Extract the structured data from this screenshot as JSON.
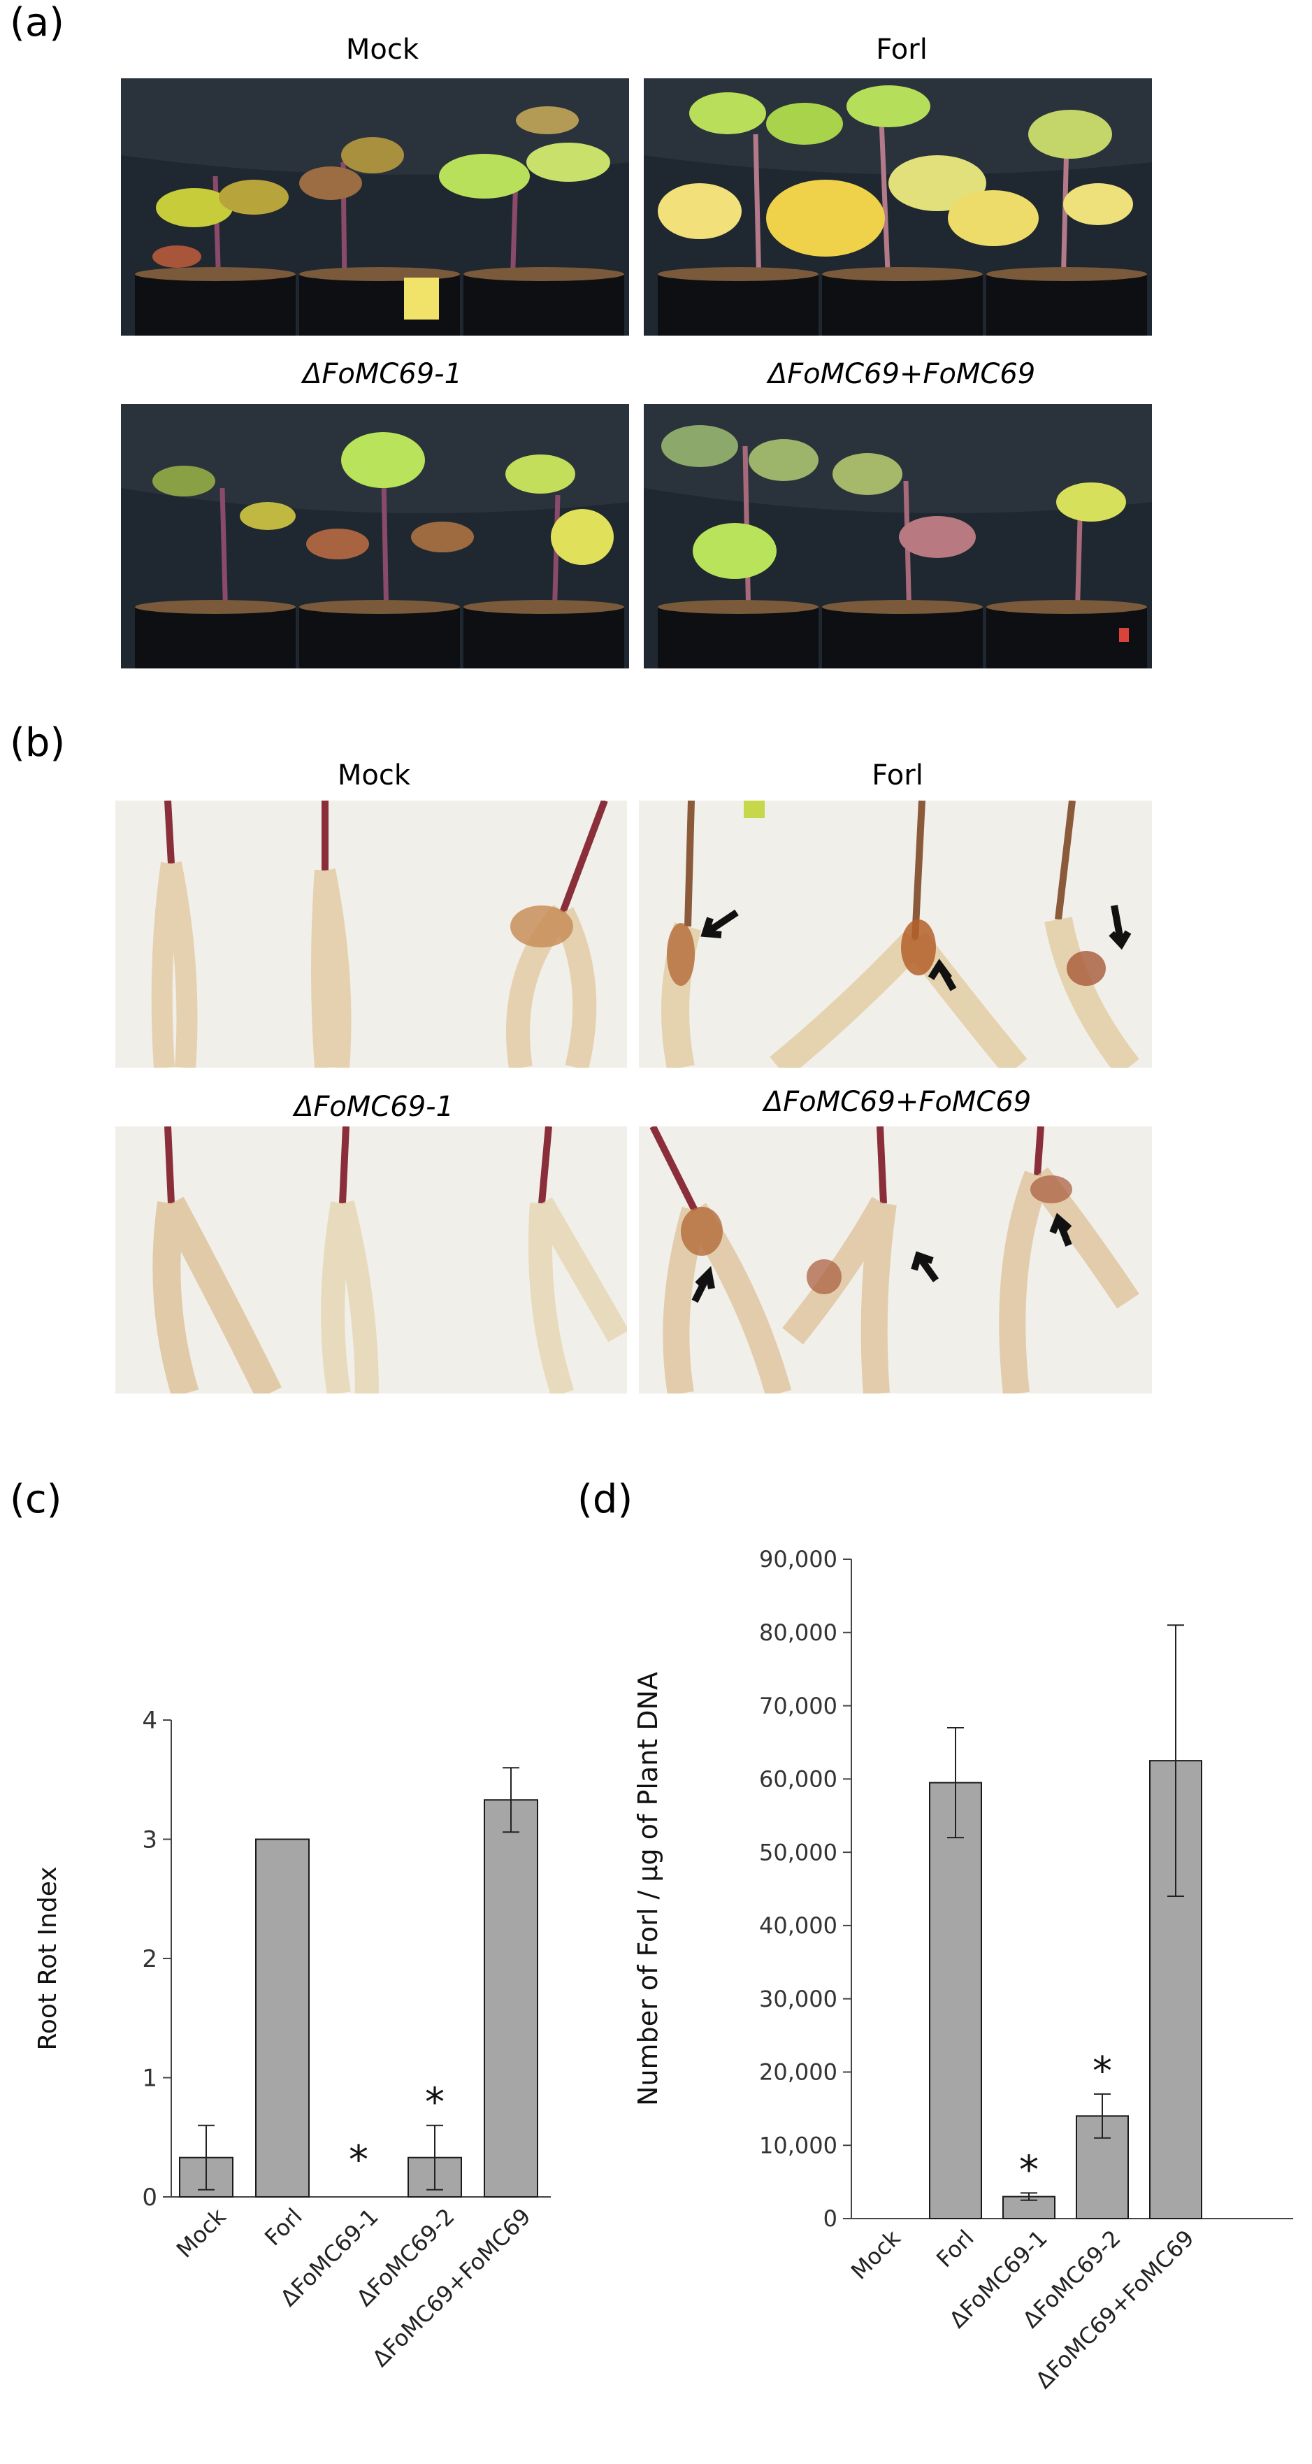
{
  "panels": {
    "a": {
      "letter": "(a)",
      "labels": [
        "Mock",
        "Forl",
        "ΔFoMC69-1",
        "ΔFoMC69+FoMC69"
      ]
    },
    "b": {
      "letter": "(b)",
      "labels": [
        "Mock",
        "Forl",
        "ΔFoMC69-1",
        "ΔFoMC69+FoMC69"
      ]
    },
    "c": {
      "letter": "(c)"
    },
    "d": {
      "letter": "(d)"
    }
  },
  "colors": {
    "bar_fill": "#a6a6a6",
    "bar_stroke": "#1a1a1a",
    "plant_bg": "#1f2730",
    "root_bg": "#f1efea"
  },
  "chart_data": [
    {
      "id": "c",
      "type": "bar",
      "categories": [
        "Mock",
        "Forl",
        "ΔFoMC69-1",
        "ΔFoMC69-2",
        "ΔFoMC69+FoMC69"
      ],
      "values": [
        0.33,
        3.0,
        0,
        0.33,
        3.33
      ],
      "errors": [
        0.27,
        0,
        0,
        0.27,
        0.27
      ],
      "significance": [
        "",
        "",
        "*",
        "*",
        ""
      ],
      "ylabel": "Root Rot Index",
      "yticks": [
        "0",
        "1",
        "2",
        "3",
        "4"
      ],
      "ylim": [
        0,
        4
      ],
      "grid": false
    },
    {
      "id": "d",
      "type": "bar",
      "categories": [
        "Mock",
        "Forl",
        "ΔFoMC69-1",
        "ΔFoMC69-2",
        "ΔFoMC69+FoMC69"
      ],
      "values": [
        0,
        59500,
        3000,
        14000,
        62500
      ],
      "errors": [
        0,
        7500,
        500,
        3000,
        18500
      ],
      "significance": [
        "",
        "",
        "*",
        "*",
        ""
      ],
      "ylabel": "Number of Forl / μg of Plant DNA",
      "yticks": [
        "0",
        "10,000",
        "20,000",
        "30,000",
        "40,000",
        "50,000",
        "60,000",
        "70,000",
        "80,000",
        "90,000"
      ],
      "ylim": [
        0,
        90000
      ],
      "grid": false
    }
  ]
}
